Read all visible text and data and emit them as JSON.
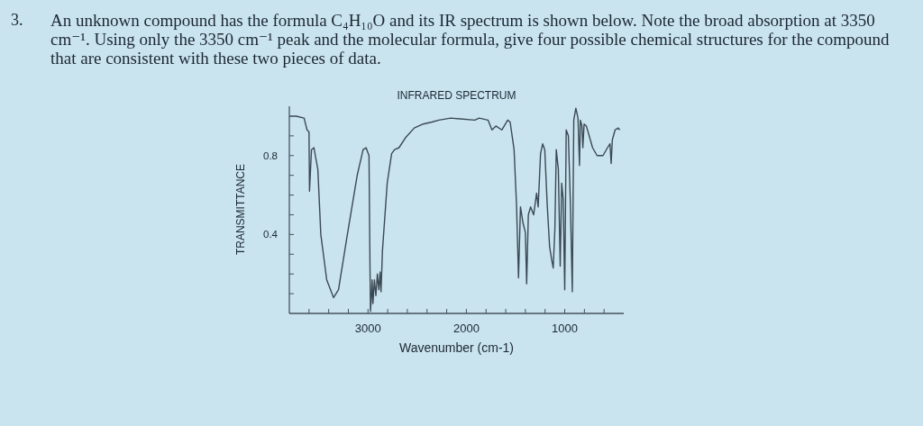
{
  "chart_data": {
    "type": "line",
    "title": "INFRARED SPECTRUM",
    "xlabel": "Wavenumber (cm-1)",
    "ylabel": "TRANSMITTANCE",
    "annotations": [
      "3.",
      "An unknown compound has the formula C₄H₁₀O and its IR spectrum is shown below. Note the broad absorption at 3350 cm⁻¹. Using only the 3350 cm⁻¹ peak and the molecular formula, give four possible chemical structures for the compound that are consistent with these two pieces of data."
    ],
    "color": "#3b4954",
    "xlim": [
      3800,
      400
    ],
    "ylim": [
      0,
      1.05
    ],
    "xticks": [
      {
        "value": 3600,
        "label": null
      },
      {
        "value": 3400,
        "label": null
      },
      {
        "value": 3200,
        "label": null
      },
      3000,
      {
        "value": 2800,
        "label": null
      },
      {
        "value": 2600,
        "label": null
      },
      {
        "value": 2400,
        "label": null
      },
      {
        "value": 2200,
        "label": null
      },
      2000,
      {
        "value": 1800,
        "label": null
      },
      {
        "value": 1600,
        "label": null
      },
      {
        "value": 1400,
        "label": null
      },
      {
        "value": 1200,
        "label": null
      },
      1000,
      {
        "value": 800,
        "label": null
      },
      {
        "value": 600,
        "label": null
      }
    ],
    "yticks": [
      {
        "value": 0.1,
        "label": null
      },
      {
        "value": 0.2,
        "label": null
      },
      {
        "value": 0.3,
        "label": null
      },
      0.4,
      {
        "value": 0.5,
        "label": null
      },
      {
        "value": 0.6,
        "label": null
      },
      {
        "value": 0.7,
        "label": null
      },
      0.8,
      {
        "value": 0.9,
        "label": null
      }
    ],
    "x": [
      3800,
      3730,
      3650,
      3620,
      3600,
      3595,
      3575,
      3550,
      3510,
      3480,
      3420,
      3350,
      3300,
      3210,
      3110,
      3050,
      3020,
      2990,
      2980,
      2975,
      2965,
      2958,
      2950,
      2935,
      2920,
      2905,
      2890,
      2877,
      2868,
      2853,
      2805,
      2760,
      2730,
      2685,
      2620,
      2530,
      2440,
      2350,
      2280,
      2160,
      1915,
      1870,
      1780,
      1740,
      1700,
      1640,
      1580,
      1555,
      1515,
      1490,
      1470,
      1450,
      1425,
      1400,
      1387,
      1370,
      1347,
      1316,
      1286,
      1270,
      1246,
      1224,
      1203,
      1178,
      1154,
      1132,
      1117,
      1100,
      1086,
      1065,
      1046,
      1031,
      1016,
      1000,
      985,
      963,
      942,
      923,
      908,
      887,
      865,
      850,
      841,
      825,
      816,
      803,
      780,
      717,
      671,
      611,
      565,
      540,
      528,
      516,
      488,
      457,
      440
    ],
    "values": [
      1.0,
      1.0,
      0.99,
      0.93,
      0.92,
      0.62,
      0.83,
      0.84,
      0.73,
      0.4,
      0.17,
      0.08,
      0.12,
      0.4,
      0.7,
      0.83,
      0.84,
      0.8,
      0.24,
      0.01,
      0.09,
      0.17,
      0.05,
      0.17,
      0.09,
      0.2,
      0.12,
      0.21,
      0.11,
      0.32,
      0.66,
      0.81,
      0.83,
      0.84,
      0.89,
      0.94,
      0.96,
      0.97,
      0.98,
      0.99,
      0.98,
      0.99,
      0.98,
      0.93,
      0.95,
      0.93,
      0.98,
      0.97,
      0.83,
      0.55,
      0.18,
      0.54,
      0.46,
      0.41,
      0.15,
      0.5,
      0.54,
      0.5,
      0.61,
      0.54,
      0.81,
      0.86,
      0.83,
      0.55,
      0.34,
      0.27,
      0.23,
      0.43,
      0.83,
      0.73,
      0.24,
      0.66,
      0.58,
      0.12,
      0.93,
      0.9,
      0.55,
      0.11,
      0.98,
      1.04,
      0.99,
      0.75,
      0.98,
      0.95,
      0.84,
      0.96,
      0.95,
      0.84,
      0.8,
      0.8,
      0.84,
      0.86,
      0.76,
      0.88,
      0.93,
      0.94,
      0.93
    ]
  }
}
